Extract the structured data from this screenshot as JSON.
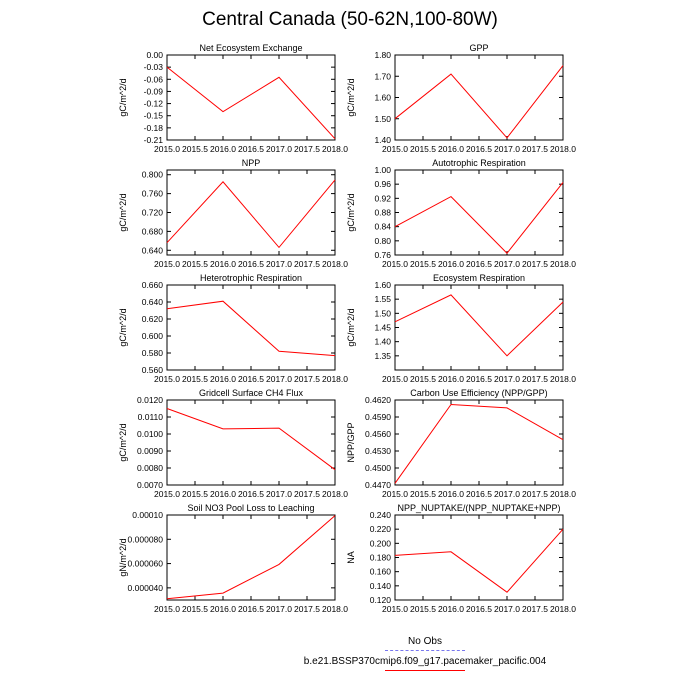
{
  "title": "Central Canada (50-62N,100-80W)",
  "legend": {
    "obs_label": "No Obs",
    "model_label": "b.e21.BSSP370cmip6.f09_g17.pacemaker_pacific.004",
    "obs_color": "#7777ee",
    "model_color": "#ff0000"
  },
  "chart_data": [
    {
      "type": "line",
      "title": "Net Ecosystem Exchange",
      "ylabel": "gC/m^2/d",
      "x": [
        2015.0,
        2016.0,
        2017.0,
        2018.0
      ],
      "values": [
        -0.03,
        -0.14,
        -0.055,
        -0.207
      ],
      "xlim": [
        2015.0,
        2018.0
      ],
      "ylim": [
        -0.21,
        0.0
      ],
      "yticks": [
        "0.00",
        "-0.03",
        "-0.06",
        "-0.09",
        "-0.12",
        "-0.15",
        "-0.18",
        "-0.21"
      ],
      "xticks": [
        "2015.0",
        "2015.5",
        "2016.0",
        "2016.5",
        "2017.0",
        "2017.5",
        "2018.0"
      ],
      "color": "#ff0000"
    },
    {
      "type": "line",
      "title": "GPP",
      "ylabel": "gC/m^2/d",
      "x": [
        2015.0,
        2016.0,
        2017.0,
        2018.0
      ],
      "values": [
        1.5,
        1.71,
        1.41,
        1.75
      ],
      "xlim": [
        2015.0,
        2018.0
      ],
      "ylim": [
        1.4,
        1.8
      ],
      "yticks": [
        "1.80",
        "1.70",
        "1.60",
        "1.50",
        "1.40"
      ],
      "xticks": [
        "2015.0",
        "2015.5",
        "2016.0",
        "2016.5",
        "2017.0",
        "2017.5",
        "2018.0"
      ],
      "color": "#ff0000"
    },
    {
      "type": "line",
      "title": "NPP",
      "ylabel": "gC/m^2/d",
      "x": [
        2015.0,
        2016.0,
        2017.0,
        2018.0
      ],
      "values": [
        0.656,
        0.785,
        0.646,
        0.789
      ],
      "xlim": [
        2015.0,
        2018.0
      ],
      "ylim": [
        0.63,
        0.81
      ],
      "yticks": [
        "0.800",
        "0.760",
        "0.720",
        "0.680",
        "0.640"
      ],
      "xticks": [
        "2015.0",
        "2015.5",
        "2016.0",
        "2016.5",
        "2017.0",
        "2017.5",
        "2018.0"
      ],
      "color": "#ff0000"
    },
    {
      "type": "line",
      "title": "Autotrophic Respiration",
      "ylabel": "gC/m^2/d",
      "x": [
        2015.0,
        2016.0,
        2017.0,
        2018.0
      ],
      "values": [
        0.84,
        0.925,
        0.765,
        0.965
      ],
      "xlim": [
        2015.0,
        2018.0
      ],
      "ylim": [
        0.76,
        1.0
      ],
      "yticks": [
        "1.00",
        "0.96",
        "0.92",
        "0.88",
        "0.84",
        "0.80",
        "0.76"
      ],
      "xticks": [
        "2015.0",
        "2015.5",
        "2016.0",
        "2016.5",
        "2017.0",
        "2017.5",
        "2018.0"
      ],
      "color": "#ff0000"
    },
    {
      "type": "line",
      "title": "Heterotrophic Respiration",
      "ylabel": "gC/m^2/d",
      "x": [
        2015.0,
        2016.0,
        2017.0,
        2018.0
      ],
      "values": [
        0.632,
        0.641,
        0.582,
        0.577
      ],
      "xlim": [
        2015.0,
        2018.0
      ],
      "ylim": [
        0.56,
        0.66
      ],
      "yticks": [
        "0.660",
        "0.640",
        "0.620",
        "0.600",
        "0.580",
        "0.560"
      ],
      "xticks": [
        "2015.0",
        "2015.5",
        "2016.0",
        "2016.5",
        "2017.0",
        "2017.5",
        "2018.0"
      ],
      "color": "#ff0000"
    },
    {
      "type": "line",
      "title": "Ecosystem Respiration",
      "ylabel": "gC/m^2/d",
      "x": [
        2015.0,
        2016.0,
        2017.0,
        2018.0
      ],
      "values": [
        1.47,
        1.565,
        1.35,
        1.54
      ],
      "xlim": [
        2015.0,
        2018.0
      ],
      "ylim": [
        1.3,
        1.6
      ],
      "yticks": [
        "1.60",
        "1.55",
        "1.50",
        "1.45",
        "1.40",
        "1.35"
      ],
      "xticks": [
        "2015.0",
        "2015.5",
        "2016.0",
        "2016.5",
        "2017.0",
        "2017.5",
        "2018.0"
      ],
      "color": "#ff0000"
    },
    {
      "type": "line",
      "title": "Gridcell Surface CH4 Flux",
      "ylabel": "gC/m^2/d",
      "x": [
        2015.0,
        2016.0,
        2017.0,
        2018.0
      ],
      "values": [
        0.0115,
        0.0103,
        0.01035,
        0.0079
      ],
      "xlim": [
        2015.0,
        2018.0
      ],
      "ylim": [
        0.007,
        0.012
      ],
      "yticks": [
        "0.0120",
        "0.0110",
        "0.0100",
        "0.0090",
        "0.0080",
        "0.0070"
      ],
      "xticks": [
        "2015.0",
        "2015.5",
        "2016.0",
        "2016.5",
        "2017.0",
        "2017.5",
        "2018.0"
      ],
      "color": "#ff0000"
    },
    {
      "type": "line",
      "title": "Carbon Use Efficiency (NPP/GPP)",
      "ylabel": "NPP/GPP",
      "x": [
        2015.0,
        2016.0,
        2017.0,
        2018.0
      ],
      "values": [
        0.4473,
        0.4612,
        0.4606,
        0.455
      ],
      "xlim": [
        2015.0,
        2018.0
      ],
      "ylim": [
        0.447,
        0.462
      ],
      "yticks": [
        "0.4620",
        "0.4590",
        "0.4560",
        "0.4530",
        "0.4500",
        "0.4470"
      ],
      "xticks": [
        "2015.0",
        "2015.5",
        "2016.0",
        "2016.5",
        "2017.0",
        "2017.5",
        "2018.0"
      ],
      "color": "#ff0000"
    },
    {
      "type": "line",
      "title": "Soil NO3 Pool Loss to Leaching",
      "ylabel": "gN/m^2/d",
      "x": [
        2015.0,
        2016.0,
        2017.0,
        2018.0
      ],
      "values": [
        3.1e-05,
        3.57e-05,
        5.93e-05,
        9.95e-05
      ],
      "xlim": [
        2015.0,
        2018.0
      ],
      "ylim": [
        3e-05,
        0.0001
      ],
      "yticks": [
        "0.00010",
        "0.000080",
        "0.000060",
        "0.000040"
      ],
      "ytick_values": [
        0.0001,
        8e-05,
        6e-05,
        4e-05
      ],
      "xticks": [
        "2015.0",
        "2015.5",
        "2016.0",
        "2016.5",
        "2017.0",
        "2017.5",
        "2018.0"
      ],
      "color": "#ff0000"
    },
    {
      "type": "line",
      "title": "NPP_NUPTAKE/(NPP_NUPTAKE+NPP)",
      "ylabel": "NA",
      "x": [
        2015.0,
        2016.0,
        2017.0,
        2018.0
      ],
      "values": [
        0.183,
        0.188,
        0.131,
        0.22
      ],
      "xlim": [
        2015.0,
        2018.0
      ],
      "ylim": [
        0.12,
        0.24
      ],
      "yticks": [
        "0.240",
        "0.220",
        "0.200",
        "0.180",
        "0.160",
        "0.140",
        "0.120"
      ],
      "xticks": [
        "2015.0",
        "2015.5",
        "2016.0",
        "2016.5",
        "2017.0",
        "2017.5",
        "2018.0"
      ],
      "color": "#ff0000"
    }
  ]
}
